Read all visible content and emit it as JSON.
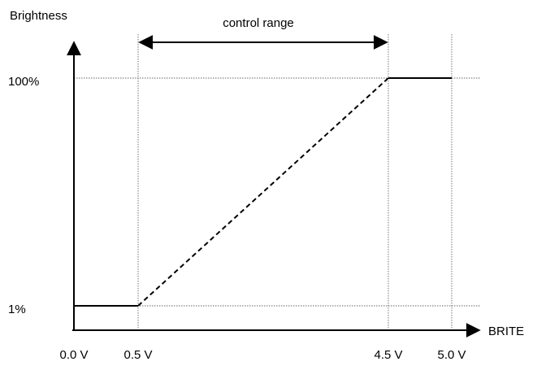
{
  "chart_data": {
    "type": "line",
    "ylabel": "Brightness",
    "xlabel": "BRITE",
    "x_ticks": [
      {
        "value": 0.0,
        "label": "0.0 V"
      },
      {
        "value": 0.5,
        "label": "0.5 V"
      },
      {
        "value": 4.5,
        "label": "4.5 V"
      },
      {
        "value": 5.0,
        "label": "5.0 V"
      }
    ],
    "y_ticks": [
      {
        "value": 1,
        "label": "1%"
      },
      {
        "value": 100,
        "label": "100%"
      }
    ],
    "series": [
      {
        "points": [
          [
            0.0,
            1
          ],
          [
            0.5,
            1
          ]
        ],
        "line_style": "solid"
      },
      {
        "points": [
          [
            0.5,
            1
          ],
          [
            4.5,
            100
          ]
        ],
        "line_style": "dashed"
      },
      {
        "points": [
          [
            4.5,
            100
          ],
          [
            5.0,
            100
          ]
        ],
        "line_style": "solid"
      }
    ],
    "annotations": [
      {
        "text": "control range",
        "x_start": 0.5,
        "x_end": 4.5,
        "style": "double-arrow"
      }
    ],
    "grid": "dotted guide lines at tick values",
    "colors": {
      "line": "#000000",
      "guide": "#666666"
    }
  }
}
